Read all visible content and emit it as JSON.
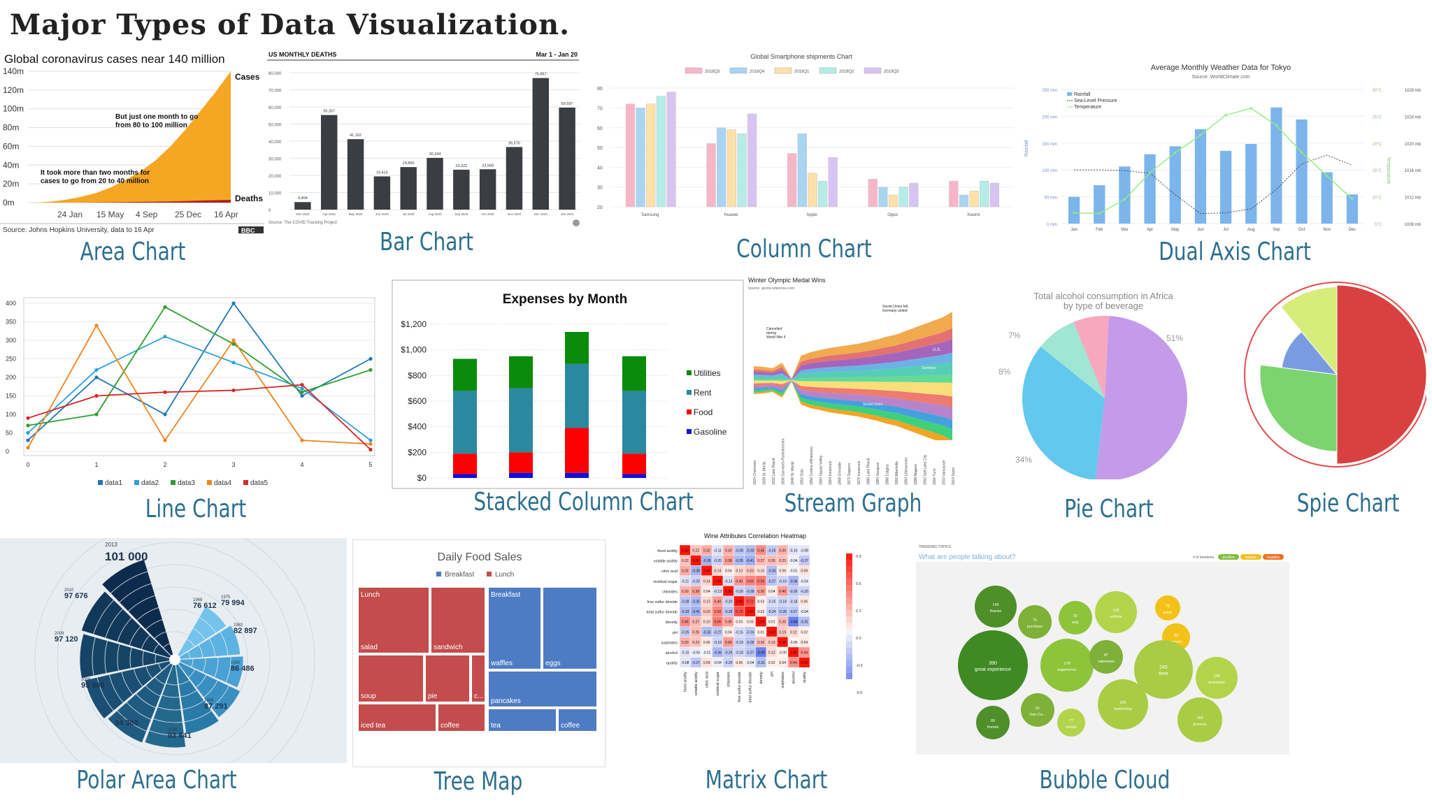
{
  "page": {
    "title": "Major Types of Data Visualization."
  },
  "captions": {
    "area": "Area Chart",
    "bar": "Bar Chart",
    "column": "Column Chart",
    "dual": "Dual Axis Chart",
    "line": "Line Chart",
    "stacked": "Stacked Column Chart",
    "stream": "Stream Graph",
    "pie": "Pie Chart",
    "spie": "Spie Chart",
    "polar": "Polar Area Chart",
    "tree": "Tree Map",
    "matrix": "Matrix Chart",
    "bubble": "Bubble Cloud"
  },
  "colors": {
    "caption": "#2c6f8f",
    "area_fill": "#f5a623",
    "bar_fill": "#3a3d42",
    "stack_utilities": "#0b8a0b",
    "stack_rent": "#2a889f",
    "stack_food": "#ff0000",
    "stack_gasoline": "#1010dd"
  },
  "chart_data": [
    {
      "id": "area",
      "type": "area",
      "title": "Global coronavirus cases near 140 million",
      "y_ticks": [
        "0m",
        "20m",
        "40m",
        "60m",
        "80m",
        "100m",
        "120m",
        "140m"
      ],
      "x_ticks": [
        "24 Jan",
        "15 May",
        "4 Sep",
        "25 Dec",
        "16 Apr"
      ],
      "series": [
        {
          "name": "Cases",
          "values": [
            0,
            1,
            3,
            6,
            10,
            16,
            24,
            33,
            45,
            60,
            78,
            98,
            118,
            140
          ]
        },
        {
          "name": "Deaths",
          "values": [
            0,
            0,
            0,
            0,
            0.2,
            0.4,
            0.6,
            0.8,
            1,
            1.3,
            1.7,
            2.2,
            2.6,
            3
          ]
        }
      ],
      "ylim": [
        0,
        140
      ],
      "annotations": [
        "But just one month to go from 80 to 100 million",
        "It took more than two months for cases to go from 20 to 40 million"
      ],
      "source": "Source: Johns Hopkins University, data to 16 Apr",
      "logo": "BBC"
    },
    {
      "id": "bar",
      "type": "bar",
      "title": "US MONTHLY DEATHS",
      "subtitle": "Mar 1 - Jan 20",
      "categories": [
        "Mar 2020",
        "Apr 2020",
        "May 2020",
        "Jun 2020",
        "Jul 2020",
        "Aug 2020",
        "Sep 2020",
        "Oct 2020",
        "Nov 2020",
        "Dec 2020",
        "Jan 2021"
      ],
      "values": [
        4404,
        55267,
        41162,
        19416,
        24860,
        30244,
        23322,
        23568,
        36576,
        76867,
        59597
      ],
      "value_labels": [
        "4,404",
        "55,267",
        "41,162",
        "19,416",
        "24,860",
        "30,244",
        "23,322",
        "23,568",
        "36,576",
        "76,867",
        "59,597"
      ],
      "y_ticks": [
        "0",
        "10,000",
        "20,000",
        "30,000",
        "40,000",
        "50,000",
        "60,000",
        "70,000",
        "80,000"
      ],
      "ylim": [
        0,
        80000
      ],
      "source": "Source: The COVID Tracking Project"
    },
    {
      "id": "column",
      "type": "bar",
      "title": "Global Smartphone shipments Chart",
      "categories": [
        "Samsung",
        "Huawei",
        "Apple",
        "Oppo",
        "Xiaomi"
      ],
      "series": [
        {
          "name": "2018Q3",
          "color": "#f7b6c8",
          "values": [
            72,
            52,
            47,
            34,
            33
          ]
        },
        {
          "name": "2018Q4",
          "color": "#a9d4f2",
          "values": [
            70,
            60,
            57,
            30,
            26
          ]
        },
        {
          "name": "2019Q1",
          "color": "#fde1a6",
          "values": [
            72,
            59,
            37,
            26,
            28
          ]
        },
        {
          "name": "2019Q2",
          "color": "#b5ece8",
          "values": [
            76,
            57,
            33,
            30,
            33
          ]
        },
        {
          "name": "2019Q3",
          "color": "#d8c4f2",
          "values": [
            78,
            67,
            45,
            32,
            32
          ]
        }
      ],
      "y_ticks": [
        "20",
        "30",
        "40",
        "50",
        "60",
        "70",
        "80"
      ],
      "ylim": [
        20,
        85
      ]
    },
    {
      "id": "dual",
      "type": "bar",
      "title": "Average Monthly Weather Data for Tokyo",
      "subtitle": "Source: WorldClimate.com",
      "categories": [
        "Jan",
        "Feb",
        "Mar",
        "Apr",
        "May",
        "Jun",
        "Jul",
        "Aug",
        "Sep",
        "Oct",
        "Nov",
        "Dec"
      ],
      "series": [
        {
          "name": "Rainfall",
          "values": [
            49.9,
            71.5,
            106.4,
            129.2,
            144.0,
            176.0,
            135.6,
            148.5,
            216.4,
            194.1,
            95.6,
            54.4
          ]
        },
        {
          "name": "Sea-Level Pressure",
          "values": [
            1016,
            1016,
            1015.9,
            1015.5,
            1012.3,
            1009.5,
            1009.6,
            1010.2,
            1013.1,
            1016.9,
            1018.2,
            1016.7
          ]
        },
        {
          "name": "Temperature",
          "values": [
            7.0,
            6.9,
            9.5,
            14.5,
            18.2,
            21.5,
            25.2,
            26.5,
            23.3,
            18.3,
            13.9,
            9.6
          ]
        }
      ],
      "y_left_ticks": [
        "0 mm",
        "50 mm",
        "100 mm",
        "150 mm",
        "200 mm",
        "250 mm"
      ],
      "y_mid_ticks": [
        "5°C",
        "10°C",
        "15°C",
        "20°C",
        "25°C",
        "30°C"
      ],
      "y_right_ticks": [
        "1008 mb",
        "1012 mb",
        "1016 mb",
        "1020 mb",
        "1024 mb",
        "1028 mb"
      ],
      "y_left_label": "Rainfall",
      "y_mid_label": "Temperature"
    },
    {
      "id": "line",
      "type": "line",
      "x": [
        0,
        1,
        2,
        3,
        4,
        5
      ],
      "series": [
        {
          "name": "data1",
          "color": "#1f77b4",
          "values": [
            30,
            200,
            100,
            400,
            150,
            250
          ]
        },
        {
          "name": "data2",
          "color": "#2ea0dc",
          "values": [
            50,
            220,
            310,
            240,
            170,
            30
          ]
        },
        {
          "name": "data3",
          "color": "#2ca02c",
          "values": [
            70,
            100,
            390,
            290,
            160,
            220
          ]
        },
        {
          "name": "data4",
          "color": "#f0841c",
          "values": [
            10,
            340,
            30,
            300,
            30,
            20
          ]
        },
        {
          "name": "data5",
          "color": "#d62728",
          "values": [
            90,
            150,
            160,
            165,
            180,
            5
          ]
        }
      ],
      "y_ticks": [
        "0",
        "50",
        "100",
        "150",
        "200",
        "250",
        "300",
        "350",
        "400"
      ],
      "ylim": [
        0,
        400
      ]
    },
    {
      "id": "stacked",
      "type": "bar",
      "title": "Expenses by Month",
      "series": [
        {
          "name": "Gasoline",
          "values": [
            30,
            40,
            40,
            30
          ]
        },
        {
          "name": "Food",
          "values": [
            160,
            160,
            350,
            160
          ]
        },
        {
          "name": "Rent",
          "values": [
            490,
            500,
            500,
            490
          ]
        },
        {
          "name": "Utilities",
          "values": [
            250,
            250,
            250,
            270
          ]
        }
      ],
      "y_ticks": [
        "$0",
        "$200",
        "$400",
        "$600",
        "$800",
        "$1,000",
        "$1,200"
      ],
      "ylim": [
        0,
        1200
      ]
    },
    {
      "id": "stream",
      "type": "area",
      "title": "Winter Olympic Medal Wins",
      "subtitle": "Source: sports-reference.com",
      "annotations": [
        "Cancelled during World War II",
        "Soviet Union fell, Germany united"
      ],
      "labels": [
        "U.S.",
        "Germany",
        "Soviet Union"
      ],
      "games": [
        "1924 Chamonix",
        "1928 St. Moritz",
        "1932 Lake Placid",
        "1936 Garmisch-Partenkirchen",
        "1948 St. Moritz",
        "1952 Oslo",
        "1956 Cortina d'Ampezzo",
        "1960 Squaw Valley",
        "1964 Innsbruck",
        "1968 Grenoble",
        "1972 Sapporo",
        "1976 Innsbruck",
        "1980 Lake Placid",
        "1984 Sarajevo",
        "1988 Calgary",
        "1992 Albertville",
        "1994 Lillehammer",
        "1998 Nagano",
        "2002 Salt Lake City",
        "2006 Turin",
        "2010 Vancouver",
        "2014 Sochi"
      ]
    },
    {
      "id": "pie",
      "type": "pie",
      "title": "Total alcohol consumption in Africa",
      "subtitle": "by type of beverage",
      "slices": [
        {
          "label": "51%",
          "value": 51,
          "color": "#c49be8"
        },
        {
          "label": "34%",
          "value": 34,
          "color": "#63c8ee"
        },
        {
          "label": "8%",
          "value": 8,
          "color": "#9fe6d4"
        },
        {
          "label": "7%",
          "value": 7,
          "color": "#f7a8bf"
        }
      ]
    },
    {
      "id": "spie",
      "type": "pie",
      "slices": [
        {
          "angle": 0.5,
          "radius": 1.0,
          "color": "#d94040"
        },
        {
          "angle": 0.27,
          "radius": 0.86,
          "color": "#7dd36f"
        },
        {
          "angle": 0.12,
          "radius": 0.62,
          "color": "#7a9be0"
        },
        {
          "angle": 0.11,
          "radius": 0.98,
          "color": "#d7ec7a"
        }
      ]
    },
    {
      "id": "polar",
      "type": "pie",
      "labels": [
        {
          "year": "2013",
          "value": "101 000"
        },
        {
          "year": "2010",
          "value": "97 676"
        },
        {
          "year": "2009",
          "value": "97 120"
        },
        {
          "year": "2008",
          "value": "95 509"
        },
        {
          "year": "2007",
          "value": "94 360"
        },
        {
          "year": "2006",
          "value": "93 641"
        },
        {
          "year": "1999",
          "value": "87 291"
        },
        {
          "year": "1990",
          "value": "86 486"
        },
        {
          "year": "1982",
          "value": "82 897"
        },
        {
          "year": "1975",
          "value": "79 994"
        },
        {
          "year": "1968",
          "value": "76 612"
        }
      ]
    },
    {
      "id": "tree",
      "type": "table",
      "title": "Daily Food Sales",
      "legend": [
        "Breakfast",
        "Lunch"
      ],
      "cells": [
        "Lunch",
        "salad",
        "sandwich",
        "soup",
        "pie",
        "c...",
        "iced tea",
        "coffee",
        "Breakfast",
        "waffles",
        "eggs",
        "pancakes",
        "tea",
        "coffee"
      ]
    },
    {
      "id": "matrix",
      "type": "heatmap",
      "title": "Wine Attributes Correlation Heatmap",
      "labels": [
        "fixed acidity",
        "volatile acidity",
        "citric acid",
        "residual sugar",
        "chlorides",
        "free sulfur dioxide",
        "total sulfur dioxide",
        "density",
        "pH",
        "sulphates",
        "alcohol",
        "quality"
      ],
      "values": [
        [
          "1.00",
          "0.22",
          "0.32",
          "-0.11",
          "0.30",
          "-0.28",
          "-0.33",
          "0.46",
          "-0.25",
          "0.30",
          "-0.10",
          "-0.08"
        ],
        [
          "0.22",
          "1.00",
          "-0.38",
          "-0.20",
          "0.38",
          "-0.35",
          "-0.41",
          "0.27",
          "0.26",
          "0.23",
          "-0.04",
          "-0.27"
        ],
        [
          "0.32",
          "-0.38",
          "1.00",
          "0.14",
          "0.04",
          "0.13",
          "0.20",
          "0.10",
          "-0.33",
          "0.06",
          "-0.01",
          "0.09"
        ],
        [
          "-0.11",
          "-0.20",
          "0.14",
          "1.00",
          "-0.13",
          "0.40",
          "0.50",
          "0.55",
          "-0.27",
          "-0.19",
          "-0.36",
          "-0.04"
        ],
        [
          "0.30",
          "0.38",
          "0.04",
          "-0.13",
          "1.00",
          "-0.20",
          "-0.28",
          "0.36",
          "0.04",
          "0.40",
          "-0.26",
          "-0.20"
        ],
        [
          "-0.28",
          "-0.35",
          "0.13",
          "0.40",
          "-0.20",
          "1.00",
          "0.72",
          "0.03",
          "-0.15",
          "-0.19",
          "-0.18",
          "0.06"
        ],
        [
          "-0.33",
          "-0.41",
          "0.20",
          "0.50",
          "-0.28",
          "0.72",
          "1.00",
          "0.03",
          "-0.24",
          "-0.28",
          "-0.27",
          "-0.04"
        ],
        [
          "0.46",
          "0.27",
          "0.10",
          "0.55",
          "0.36",
          "0.03",
          "0.03",
          "1.00",
          "0.01",
          "0.26",
          "-0.69",
          "-0.31"
        ],
        [
          "-0.25",
          "0.26",
          "-0.33",
          "-0.27",
          "0.04",
          "-0.15",
          "-0.24",
          "0.01",
          "1.00",
          "0.19",
          "0.12",
          "0.02"
        ],
        [
          "0.30",
          "0.23",
          "0.06",
          "-0.19",
          "0.40",
          "-0.19",
          "-0.28",
          "0.26",
          "0.19",
          "1.00",
          "-0.00",
          "0.04"
        ],
        [
          "-0.10",
          "-0.04",
          "-0.01",
          "-0.36",
          "-0.26",
          "-0.18",
          "-0.27",
          "-0.69",
          "0.12",
          "-0.00",
          "1.00",
          "0.44"
        ],
        [
          "-0.08",
          "-0.27",
          "0.09",
          "-0.04",
          "-0.20",
          "0.06",
          "-0.04",
          "-0.31",
          "0.02",
          "0.04",
          "0.44",
          "1.00"
        ]
      ],
      "scale_ticks": [
        "0.9",
        "0.6",
        "0.3",
        "0.0",
        "-0.3",
        "-0.6"
      ]
    },
    {
      "id": "bubble",
      "type": "scatter",
      "header": "TRENDING TOPICS",
      "question": "What are people talking about?",
      "legend_label": "# of mentions",
      "legend": [
        "positive",
        "neutral",
        "negative"
      ],
      "bubbles": [
        {
          "label": "thanks",
          "value": "146"
        },
        {
          "label": "great experience",
          "value": "390"
        },
        {
          "label": "friends",
          "value": "89"
        },
        {
          "label": "purchase",
          "value": "76"
        },
        {
          "label": "Dan Ca...",
          "value": "81"
        },
        {
          "label": "way",
          "value": "92"
        },
        {
          "label": "experience",
          "value": "178"
        },
        {
          "label": "needs",
          "value": "77"
        },
        {
          "label": "vehicle",
          "value": "128"
        },
        {
          "label": "salesman",
          "value": "87"
        },
        {
          "label": "dealership",
          "value": "206"
        },
        {
          "label": "price",
          "value": "75"
        },
        {
          "label": "service",
          "value": "83"
        },
        {
          "label": "time",
          "value": "245"
        },
        {
          "label": "questions",
          "value": "159"
        },
        {
          "label": "process",
          "value": "163"
        }
      ]
    }
  ]
}
